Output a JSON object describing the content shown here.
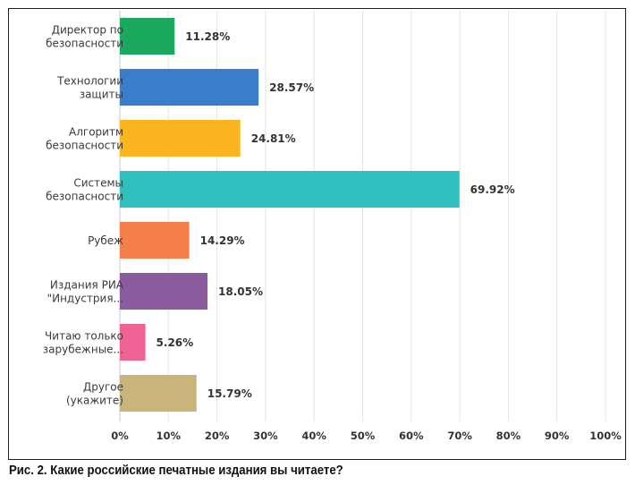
{
  "caption": "Рис. 2. Какие российские печатные издания вы читаете?",
  "chart_data": {
    "type": "bar",
    "orientation": "horizontal",
    "categories": [
      [
        "Директор по",
        "безопасности"
      ],
      [
        "Технологии",
        "защиты"
      ],
      [
        "Алгоритм",
        "безопасности"
      ],
      [
        "Системы",
        "безопасности"
      ],
      [
        "Рубеж"
      ],
      [
        "Издания РИА",
        "\"Индустрия..."
      ],
      [
        "Читаю только",
        "зарубежные..."
      ],
      [
        "Другое",
        "(укажите)"
      ]
    ],
    "values": [
      11.28,
      28.57,
      24.81,
      69.92,
      14.29,
      18.05,
      5.26,
      15.79
    ],
    "value_labels": [
      "11.28%",
      "28.57%",
      "24.81%",
      "69.92%",
      "14.29%",
      "18.05%",
      "5.26%",
      "15.79%"
    ],
    "colors": [
      "#1aa85f",
      "#3a7dcb",
      "#fbb520",
      "#2fbfbd",
      "#f47f4a",
      "#8a5c9e",
      "#ef6294",
      "#c9b57c"
    ],
    "xlim": [
      0,
      100
    ],
    "xticks": [
      0,
      10,
      20,
      30,
      40,
      50,
      60,
      70,
      80,
      90,
      100
    ],
    "xtick_labels": [
      "0%",
      "10%",
      "20%",
      "30%",
      "40%",
      "50%",
      "60%",
      "70%",
      "80%",
      "90%",
      "100%"
    ],
    "grid": "vertical",
    "legend": "none"
  }
}
